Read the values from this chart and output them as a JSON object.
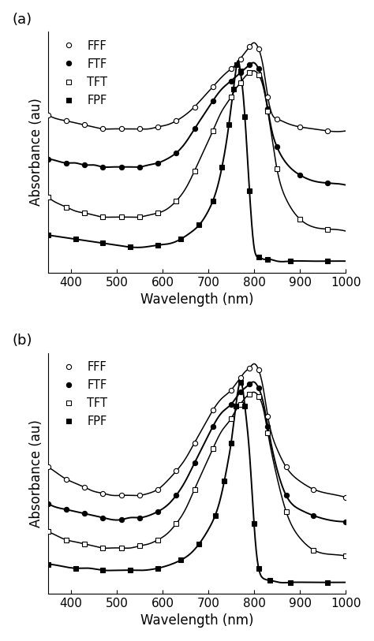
{
  "panel_a_label": "(a)",
  "panel_b_label": "(b)",
  "xlabel": "Wavelength (nm)",
  "ylabel": "Absorbance (au)",
  "xmin": 350,
  "xmax": 1000,
  "xticks": [
    400,
    500,
    600,
    700,
    800,
    900,
    1000
  ],
  "legend_labels": [
    "FFF",
    "FTF",
    "TFT",
    "FPF"
  ],
  "panel_a": {
    "FFF": {
      "x": [
        350,
        370,
        390,
        410,
        430,
        450,
        470,
        490,
        510,
        530,
        550,
        570,
        590,
        610,
        630,
        650,
        670,
        690,
        710,
        730,
        750,
        760,
        770,
        780,
        790,
        800,
        810,
        820,
        830,
        840,
        850,
        870,
        900,
        930,
        960,
        1000
      ],
      "y": [
        0.74,
        0.72,
        0.71,
        0.7,
        0.69,
        0.68,
        0.67,
        0.67,
        0.67,
        0.67,
        0.67,
        0.67,
        0.68,
        0.69,
        0.71,
        0.74,
        0.78,
        0.83,
        0.88,
        0.93,
        0.97,
        0.99,
        1.02,
        1.05,
        1.08,
        1.1,
        1.07,
        0.98,
        0.83,
        0.74,
        0.72,
        0.7,
        0.68,
        0.67,
        0.66,
        0.66
      ]
    },
    "FTF": {
      "x": [
        350,
        370,
        390,
        410,
        430,
        450,
        470,
        490,
        510,
        530,
        550,
        570,
        590,
        610,
        630,
        650,
        670,
        690,
        710,
        730,
        750,
        760,
        770,
        780,
        790,
        800,
        810,
        820,
        830,
        840,
        850,
        870,
        900,
        930,
        960,
        1000
      ],
      "y": [
        0.52,
        0.51,
        0.5,
        0.5,
        0.49,
        0.49,
        0.48,
        0.48,
        0.48,
        0.48,
        0.48,
        0.49,
        0.5,
        0.52,
        0.55,
        0.6,
        0.67,
        0.74,
        0.81,
        0.87,
        0.91,
        0.93,
        0.95,
        0.97,
        0.99,
        1.0,
        0.97,
        0.9,
        0.77,
        0.65,
        0.58,
        0.5,
        0.44,
        0.41,
        0.4,
        0.39
      ]
    },
    "TFT": {
      "x": [
        350,
        370,
        390,
        410,
        430,
        450,
        470,
        490,
        510,
        530,
        550,
        570,
        590,
        610,
        630,
        650,
        670,
        690,
        710,
        730,
        750,
        760,
        770,
        780,
        790,
        800,
        810,
        820,
        830,
        840,
        850,
        870,
        900,
        930,
        960,
        1000
      ],
      "y": [
        0.33,
        0.3,
        0.28,
        0.26,
        0.25,
        0.24,
        0.23,
        0.23,
        0.23,
        0.23,
        0.23,
        0.24,
        0.25,
        0.27,
        0.31,
        0.37,
        0.46,
        0.56,
        0.66,
        0.76,
        0.83,
        0.87,
        0.9,
        0.93,
        0.95,
        0.96,
        0.94,
        0.88,
        0.76,
        0.61,
        0.47,
        0.32,
        0.22,
        0.18,
        0.17,
        0.16
      ]
    },
    "FPF": {
      "x": [
        350,
        380,
        410,
        440,
        470,
        500,
        530,
        560,
        590,
        620,
        640,
        660,
        680,
        700,
        710,
        720,
        730,
        740,
        745,
        750,
        755,
        760,
        762,
        765,
        770,
        775,
        780,
        785,
        790,
        800,
        810,
        820,
        830,
        850,
        880,
        920,
        960,
        1000
      ],
      "y": [
        0.14,
        0.13,
        0.12,
        0.11,
        0.1,
        0.09,
        0.08,
        0.08,
        0.09,
        0.1,
        0.12,
        0.15,
        0.19,
        0.26,
        0.31,
        0.38,
        0.48,
        0.61,
        0.69,
        0.78,
        0.87,
        0.96,
        0.99,
        1.01,
        0.96,
        0.87,
        0.73,
        0.55,
        0.36,
        0.08,
        0.03,
        0.02,
        0.02,
        0.01,
        0.01,
        0.01,
        0.01,
        0.01
      ]
    }
  },
  "panel_b": {
    "FFF": {
      "x": [
        350,
        370,
        390,
        410,
        430,
        450,
        470,
        490,
        510,
        530,
        550,
        570,
        590,
        610,
        630,
        650,
        670,
        690,
        710,
        730,
        750,
        760,
        770,
        780,
        790,
        800,
        810,
        820,
        830,
        850,
        870,
        900,
        930,
        960,
        1000
      ],
      "y": [
        0.58,
        0.55,
        0.52,
        0.5,
        0.48,
        0.46,
        0.45,
        0.44,
        0.44,
        0.44,
        0.44,
        0.45,
        0.47,
        0.51,
        0.56,
        0.62,
        0.7,
        0.78,
        0.86,
        0.92,
        0.96,
        0.99,
        1.02,
        1.05,
        1.07,
        1.09,
        1.06,
        0.97,
        0.83,
        0.67,
        0.58,
        0.51,
        0.47,
        0.45,
        0.43
      ]
    },
    "FTF": {
      "x": [
        350,
        370,
        390,
        410,
        430,
        450,
        470,
        490,
        510,
        530,
        550,
        570,
        590,
        610,
        630,
        650,
        670,
        690,
        710,
        730,
        750,
        760,
        770,
        780,
        790,
        800,
        810,
        820,
        830,
        850,
        870,
        900,
        930,
        960,
        1000
      ],
      "y": [
        0.4,
        0.38,
        0.37,
        0.36,
        0.35,
        0.34,
        0.33,
        0.32,
        0.32,
        0.33,
        0.33,
        0.34,
        0.36,
        0.39,
        0.44,
        0.51,
        0.6,
        0.69,
        0.78,
        0.85,
        0.89,
        0.92,
        0.95,
        0.97,
        0.99,
        1.0,
        0.97,
        0.9,
        0.78,
        0.57,
        0.44,
        0.37,
        0.34,
        0.32,
        0.31
      ]
    },
    "TFT": {
      "x": [
        350,
        370,
        390,
        410,
        430,
        450,
        470,
        490,
        510,
        530,
        550,
        570,
        590,
        610,
        630,
        650,
        670,
        690,
        710,
        730,
        750,
        760,
        770,
        780,
        790,
        800,
        810,
        820,
        830,
        850,
        870,
        900,
        930,
        960,
        1000
      ],
      "y": [
        0.26,
        0.24,
        0.22,
        0.21,
        0.2,
        0.19,
        0.18,
        0.18,
        0.18,
        0.18,
        0.19,
        0.2,
        0.22,
        0.25,
        0.3,
        0.37,
        0.47,
        0.57,
        0.67,
        0.76,
        0.82,
        0.86,
        0.89,
        0.92,
        0.94,
        0.95,
        0.93,
        0.87,
        0.75,
        0.53,
        0.36,
        0.23,
        0.17,
        0.15,
        0.14
      ]
    },
    "FPF": {
      "x": [
        350,
        380,
        410,
        440,
        470,
        500,
        530,
        560,
        590,
        620,
        640,
        660,
        680,
        700,
        715,
        725,
        735,
        745,
        750,
        755,
        760,
        765,
        770,
        775,
        780,
        790,
        800,
        805,
        810,
        820,
        835,
        855,
        880,
        920,
        960,
        1000
      ],
      "y": [
        0.1,
        0.09,
        0.08,
        0.08,
        0.07,
        0.07,
        0.07,
        0.07,
        0.08,
        0.1,
        0.12,
        0.15,
        0.2,
        0.27,
        0.34,
        0.41,
        0.51,
        0.63,
        0.7,
        0.79,
        0.88,
        0.96,
        1.0,
        0.97,
        0.88,
        0.65,
        0.3,
        0.16,
        0.08,
        0.03,
        0.02,
        0.01,
        0.01,
        0.01,
        0.01,
        0.01
      ]
    }
  }
}
